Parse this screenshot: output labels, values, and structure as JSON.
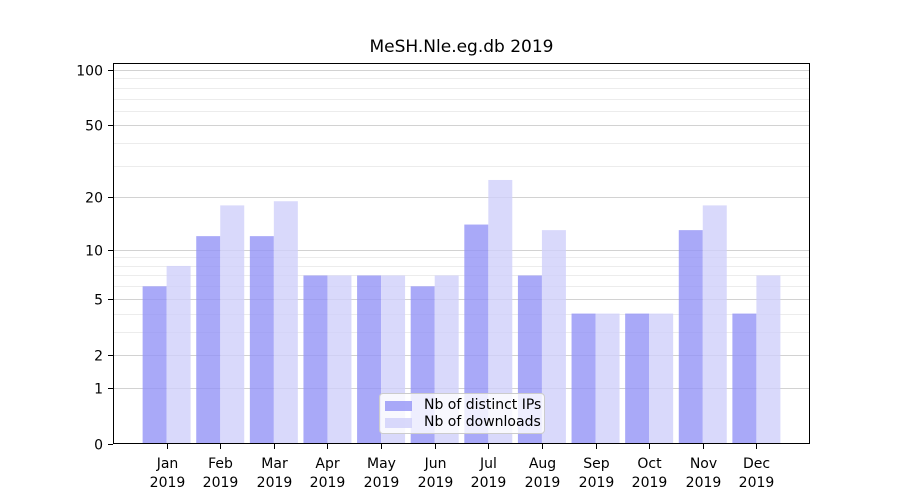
{
  "figure": {
    "title": "MeSH.Nle.eg.db 2019"
  },
  "chart_data": {
    "type": "bar",
    "title": "MeSH.Nle.eg.db 2019",
    "categories": [
      "Jan",
      "Feb",
      "Mar",
      "Apr",
      "May",
      "Jun",
      "Jul",
      "Aug",
      "Sep",
      "Oct",
      "Nov",
      "Dec"
    ],
    "year_label": "2019",
    "series": [
      {
        "name": "Nb of distinct IPs",
        "color": "#9494f6",
        "values": [
          6,
          12,
          12,
          7,
          7,
          6,
          14,
          7,
          4,
          4,
          13,
          4
        ]
      },
      {
        "name": "Nb of downloads",
        "color": "#d0d0fa",
        "values": [
          8,
          18,
          19,
          7,
          7,
          7,
          25,
          13,
          4,
          4,
          18,
          7
        ]
      }
    ],
    "bar_alpha": 0.8,
    "y_ticks": [
      0,
      1,
      2,
      5,
      10,
      20,
      50,
      100
    ],
    "y_minor_gridlines": [
      3,
      4,
      6,
      7,
      8,
      9,
      30,
      40,
      60,
      70,
      80,
      90
    ],
    "scale": "log1p",
    "ylim": [
      0,
      110
    ],
    "xlabel": "",
    "ylabel": "",
    "grid": true,
    "legend_position": "lower center",
    "legend": [
      "Nb of distinct IPs",
      "Nb of downloads"
    ]
  }
}
